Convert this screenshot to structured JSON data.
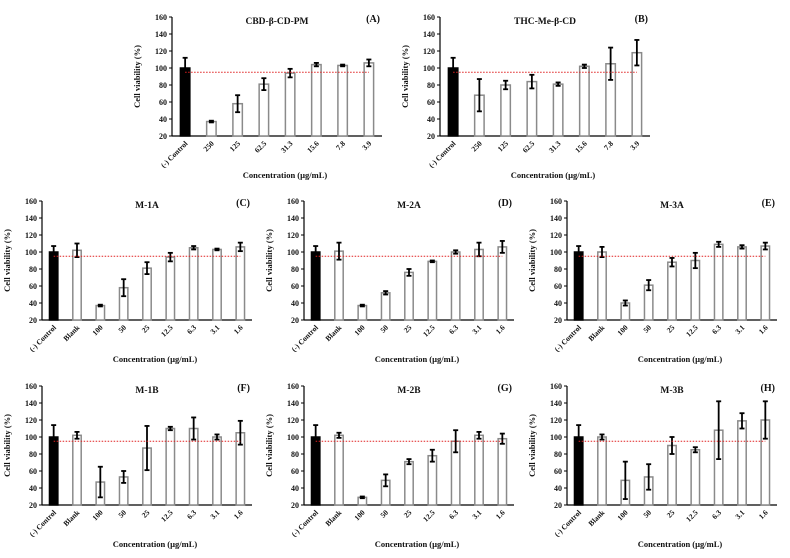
{
  "colors": {
    "control_bar": "#000000",
    "sample_bar_fill": "#ffffff",
    "sample_bar_stroke": "#8a8a8a",
    "error_bar": "#000000",
    "threshold_line": "#e02020"
  },
  "chart_data": [
    {
      "type": "bar",
      "panel_label": "(A)",
      "title": "CBD-β-CD-PM",
      "xlabel": "Concentration (µg/mL)",
      "ylabel": "Cell viability (%)",
      "ylim": [
        20,
        160
      ],
      "yticks": [
        20,
        40,
        60,
        80,
        100,
        120,
        140,
        160
      ],
      "threshold": 95,
      "categories": [
        "(-) Control",
        "250",
        "125",
        "62.5",
        "31.3",
        "15.6",
        "7.8",
        "3.9"
      ],
      "values": [
        100,
        37,
        58,
        81,
        94,
        104,
        103,
        106
      ],
      "errors": [
        12,
        1,
        10,
        7,
        5,
        2,
        1,
        4
      ]
    },
    {
      "type": "bar",
      "panel_label": "(B)",
      "title": "THC-Me-β-CD",
      "xlabel": "Concentration (µg/mL)",
      "ylabel": "Cell viability (%)",
      "ylim": [
        20,
        160
      ],
      "yticks": [
        20,
        40,
        60,
        80,
        100,
        120,
        140,
        160
      ],
      "threshold": 95,
      "categories": [
        "(-) Control",
        "250",
        "125",
        "62.5",
        "31.3",
        "15.6",
        "7.8",
        "3.9"
      ],
      "values": [
        100,
        68,
        80,
        84,
        81,
        102,
        105,
        118
      ],
      "errors": [
        12,
        19,
        5,
        8,
        2,
        2,
        19,
        15
      ]
    },
    {
      "type": "bar",
      "panel_label": "(C)",
      "title": "M-1A",
      "xlabel": "Concentration (µg/mL)",
      "ylabel": "Cell viability (%)",
      "ylim": [
        20,
        160
      ],
      "yticks": [
        20,
        40,
        60,
        80,
        100,
        120,
        140,
        160
      ],
      "threshold": 95,
      "categories": [
        "(-) Control",
        "Blank",
        "100",
        "50",
        "25",
        "12.5",
        "6.3",
        "3.1",
        "1.6"
      ],
      "values": [
        100,
        102,
        37,
        58,
        81,
        94,
        105,
        103,
        106
      ],
      "errors": [
        7,
        8,
        1,
        10,
        7,
        5,
        2,
        1,
        5
      ]
    },
    {
      "type": "bar",
      "panel_label": "(D)",
      "title": "M-2A",
      "xlabel": "Concentration (µg/mL)",
      "ylabel": "Cell viability (%)",
      "ylim": [
        20,
        160
      ],
      "yticks": [
        20,
        40,
        60,
        80,
        100,
        120,
        140,
        160
      ],
      "threshold": 95,
      "categories": [
        "(-) Control",
        "Blank",
        "100",
        "50",
        "25",
        "12.5",
        "6.3",
        "3.1",
        "1.6"
      ],
      "values": [
        100,
        101,
        37,
        52,
        76,
        89,
        100,
        103,
        106
      ],
      "errors": [
        7,
        10,
        1,
        2,
        4,
        1,
        2,
        8,
        7
      ]
    },
    {
      "type": "bar",
      "panel_label": "(E)",
      "title": "M-3A",
      "xlabel": "Concentration (µg/mL)",
      "ylabel": "Cell viability (%)",
      "ylim": [
        20,
        160
      ],
      "yticks": [
        20,
        40,
        60,
        80,
        100,
        120,
        140,
        160
      ],
      "threshold": 95,
      "categories": [
        "(-) Control",
        "Blank",
        "100",
        "50",
        "25",
        "12.5",
        "6.3",
        "3.1",
        "1.6"
      ],
      "values": [
        100,
        100,
        40,
        61,
        88,
        90,
        109,
        106,
        107
      ],
      "errors": [
        7,
        6,
        3,
        6,
        5,
        9,
        3,
        2,
        4
      ]
    },
    {
      "type": "bar",
      "panel_label": "(F)",
      "title": "M-1B",
      "xlabel": "Concentration (µg/mL)",
      "ylabel": "Cell viability (%)",
      "ylim": [
        20,
        160
      ],
      "yticks": [
        20,
        40,
        60,
        80,
        100,
        120,
        140,
        160
      ],
      "threshold": 95,
      "categories": [
        "(-) Control",
        "Blank",
        "100",
        "50",
        "25",
        "12.5",
        "6.3",
        "3.1",
        "1.6"
      ],
      "values": [
        100,
        102,
        47,
        53,
        87,
        110,
        110,
        100,
        105
      ],
      "errors": [
        14,
        4,
        18,
        7,
        26,
        2,
        13,
        3,
        14
      ]
    },
    {
      "type": "bar",
      "panel_label": "(G)",
      "title": "M-2B",
      "xlabel": "Concentration (µg/mL)",
      "ylabel": "Cell viability (%)",
      "ylim": [
        20,
        160
      ],
      "yticks": [
        20,
        40,
        60,
        80,
        100,
        120,
        140,
        160
      ],
      "threshold": 95,
      "categories": [
        "(-) Control",
        "Blank",
        "100",
        "50",
        "25",
        "12.5",
        "6.3",
        "3.1",
        "1.6"
      ],
      "values": [
        100,
        102,
        29,
        49,
        71,
        78,
        95,
        102,
        98
      ],
      "errors": [
        14,
        3,
        1,
        7,
        3,
        7,
        13,
        4,
        6
      ]
    },
    {
      "type": "bar",
      "panel_label": "(H)",
      "title": "M-3B",
      "xlabel": "Concentration (µg/mL)",
      "ylabel": "Cell viability (%)",
      "ylim": [
        20,
        160
      ],
      "yticks": [
        20,
        40,
        60,
        80,
        100,
        120,
        140,
        160
      ],
      "threshold": 95,
      "categories": [
        "(-) Control",
        "Blank",
        "100",
        "50",
        "25",
        "12.5",
        "6.3",
        "3.1",
        "1.6"
      ],
      "values": [
        100,
        100,
        49,
        53,
        90,
        85,
        108,
        119,
        120
      ],
      "errors": [
        14,
        3,
        22,
        15,
        10,
        3,
        34,
        9,
        22
      ]
    }
  ]
}
